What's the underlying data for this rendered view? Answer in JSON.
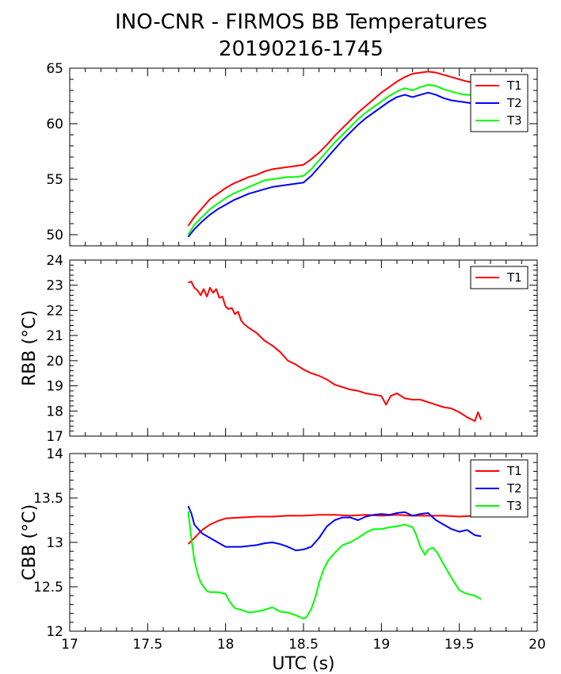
{
  "figure": {
    "title_line1": "INO-CNR - FIRMOS BB Temperatures",
    "title_line2": "20190216-1745"
  },
  "chart_data": [
    {
      "type": "line",
      "title": "",
      "xlabel": "",
      "ylabel": "",
      "xlim": [
        17,
        20
      ],
      "ylim": [
        49,
        65
      ],
      "yticks": [
        50,
        55,
        60,
        65
      ],
      "grid": false,
      "legend": "top-right",
      "series": [
        {
          "name": "T1",
          "color": "#ff0000",
          "x": [
            17.76,
            17.8,
            17.85,
            17.9,
            17.95,
            18.0,
            18.05,
            18.1,
            18.15,
            18.2,
            18.25,
            18.3,
            18.35,
            18.4,
            18.45,
            18.5,
            18.55,
            18.6,
            18.65,
            18.7,
            18.75,
            18.8,
            18.85,
            18.9,
            18.95,
            19.0,
            19.05,
            19.1,
            19.15,
            19.2,
            19.25,
            19.3,
            19.35,
            19.4,
            19.45,
            19.5,
            19.55,
            19.6,
            19.64
          ],
          "y": [
            50.8,
            51.6,
            52.4,
            53.2,
            53.7,
            54.2,
            54.6,
            54.9,
            55.2,
            55.4,
            55.7,
            55.9,
            56.0,
            56.1,
            56.2,
            56.3,
            56.8,
            57.4,
            58.1,
            58.9,
            59.6,
            60.3,
            61.0,
            61.6,
            62.2,
            62.8,
            63.3,
            63.8,
            64.2,
            64.5,
            64.6,
            64.7,
            64.6,
            64.4,
            64.2,
            64.0,
            63.8,
            63.7,
            63.6
          ]
        },
        {
          "name": "T2",
          "color": "#0000ff",
          "x": [
            17.76,
            17.8,
            17.85,
            17.9,
            17.95,
            18.0,
            18.05,
            18.1,
            18.15,
            18.2,
            18.25,
            18.3,
            18.35,
            18.4,
            18.45,
            18.5,
            18.55,
            18.6,
            18.65,
            18.7,
            18.75,
            18.8,
            18.85,
            18.9,
            18.95,
            19.0,
            19.05,
            19.1,
            19.15,
            19.2,
            19.25,
            19.3,
            19.35,
            19.4,
            19.45,
            19.5,
            19.55,
            19.6,
            19.64
          ],
          "y": [
            49.8,
            50.5,
            51.2,
            51.8,
            52.3,
            52.7,
            53.1,
            53.4,
            53.7,
            53.9,
            54.1,
            54.3,
            54.4,
            54.5,
            54.6,
            54.7,
            55.3,
            56.1,
            56.9,
            57.7,
            58.5,
            59.2,
            59.9,
            60.5,
            61.0,
            61.5,
            62.0,
            62.4,
            62.6,
            62.4,
            62.6,
            62.8,
            62.6,
            62.3,
            62.1,
            62.0,
            61.9,
            61.8,
            61.8
          ]
        },
        {
          "name": "T3",
          "color": "#00ff00",
          "x": [
            17.76,
            17.8,
            17.85,
            17.9,
            17.95,
            18.0,
            18.05,
            18.1,
            18.15,
            18.2,
            18.25,
            18.3,
            18.35,
            18.4,
            18.45,
            18.5,
            18.55,
            18.6,
            18.65,
            18.7,
            18.75,
            18.8,
            18.85,
            18.9,
            18.95,
            19.0,
            19.05,
            19.1,
            19.15,
            19.2,
            19.25,
            19.3,
            19.35,
            19.4,
            19.45,
            19.5,
            19.55,
            19.6,
            19.64
          ],
          "y": [
            50.0,
            50.9,
            51.6,
            52.3,
            52.8,
            53.3,
            53.7,
            54.0,
            54.3,
            54.6,
            54.9,
            55.0,
            55.1,
            55.2,
            55.2,
            55.3,
            55.9,
            56.7,
            57.5,
            58.3,
            59.0,
            59.7,
            60.4,
            61.0,
            61.5,
            62.0,
            62.5,
            62.9,
            63.2,
            63.0,
            63.3,
            63.5,
            63.4,
            63.1,
            62.9,
            62.7,
            62.6,
            62.6,
            62.5
          ]
        }
      ]
    },
    {
      "type": "line",
      "title": "",
      "xlabel": "",
      "ylabel": "RBB (°C)",
      "xlim": [
        17,
        20
      ],
      "ylim": [
        17,
        24
      ],
      "yticks": [
        17,
        18,
        19,
        20,
        21,
        22,
        23,
        24
      ],
      "grid": false,
      "legend": "top-right",
      "series": [
        {
          "name": "T1",
          "color": "#ff0000",
          "x": [
            17.76,
            17.78,
            17.8,
            17.82,
            17.84,
            17.86,
            17.88,
            17.9,
            17.92,
            17.94,
            17.96,
            17.98,
            18.0,
            18.02,
            18.04,
            18.06,
            18.08,
            18.1,
            18.12,
            18.15,
            18.2,
            18.25,
            18.3,
            18.35,
            18.4,
            18.45,
            18.5,
            18.55,
            18.6,
            18.65,
            18.7,
            18.75,
            18.8,
            18.85,
            18.9,
            18.95,
            19.0,
            19.03,
            19.06,
            19.1,
            19.15,
            19.2,
            19.25,
            19.3,
            19.35,
            19.4,
            19.45,
            19.5,
            19.55,
            19.6,
            19.62,
            19.64
          ],
          "y": [
            23.1,
            23.15,
            22.9,
            22.8,
            22.6,
            22.85,
            22.55,
            22.9,
            22.7,
            22.85,
            22.5,
            22.55,
            22.15,
            22.05,
            22.1,
            21.85,
            21.95,
            21.6,
            21.45,
            21.3,
            21.1,
            20.8,
            20.6,
            20.35,
            20.0,
            19.85,
            19.65,
            19.5,
            19.4,
            19.25,
            19.05,
            18.95,
            18.85,
            18.8,
            18.7,
            18.65,
            18.6,
            18.25,
            18.6,
            18.7,
            18.5,
            18.45,
            18.45,
            18.35,
            18.25,
            18.15,
            18.1,
            17.95,
            17.75,
            17.6,
            17.95,
            17.65
          ]
        }
      ]
    },
    {
      "type": "line",
      "title": "",
      "xlabel": "UTC (s)",
      "ylabel": "CBB (°C)",
      "xlim": [
        17,
        20
      ],
      "ylim": [
        12,
        14
      ],
      "yticks": [
        12,
        12.5,
        13,
        13.5,
        14
      ],
      "xticks": [
        17,
        17.5,
        18,
        18.5,
        19,
        19.5,
        20
      ],
      "grid": false,
      "legend": "top-right",
      "series": [
        {
          "name": "T1",
          "color": "#ff0000",
          "x": [
            17.76,
            17.8,
            17.85,
            17.9,
            17.95,
            18.0,
            18.1,
            18.2,
            18.3,
            18.4,
            18.5,
            18.6,
            18.7,
            18.8,
            18.9,
            19.0,
            19.1,
            19.2,
            19.3,
            19.4,
            19.5,
            19.6,
            19.64
          ],
          "y": [
            12.98,
            13.05,
            13.14,
            13.2,
            13.24,
            13.27,
            13.28,
            13.29,
            13.29,
            13.3,
            13.3,
            13.31,
            13.31,
            13.3,
            13.31,
            13.3,
            13.31,
            13.3,
            13.3,
            13.3,
            13.29,
            13.3,
            13.3
          ]
        },
        {
          "name": "T2",
          "color": "#0000ff",
          "x": [
            17.76,
            17.78,
            17.8,
            17.85,
            17.9,
            17.95,
            18.0,
            18.05,
            18.1,
            18.15,
            18.2,
            18.25,
            18.3,
            18.35,
            18.4,
            18.45,
            18.5,
            18.55,
            18.6,
            18.65,
            18.7,
            18.75,
            18.8,
            18.85,
            18.9,
            18.95,
            19.0,
            19.05,
            19.1,
            19.15,
            19.2,
            19.25,
            19.3,
            19.35,
            19.4,
            19.45,
            19.5,
            19.55,
            19.6,
            19.64
          ],
          "y": [
            13.41,
            13.33,
            13.2,
            13.1,
            13.05,
            13.0,
            12.95,
            12.95,
            12.95,
            12.96,
            12.97,
            12.99,
            13.0,
            12.98,
            12.95,
            12.91,
            12.92,
            12.95,
            13.05,
            13.18,
            13.25,
            13.28,
            13.28,
            13.25,
            13.29,
            13.31,
            13.32,
            13.31,
            13.33,
            13.34,
            13.3,
            13.32,
            13.33,
            13.25,
            13.2,
            13.15,
            13.12,
            13.14,
            13.08,
            13.07
          ]
        },
        {
          "name": "T3",
          "color": "#00ff00",
          "x": [
            17.76,
            17.78,
            17.8,
            17.82,
            17.84,
            17.86,
            17.88,
            17.9,
            17.95,
            18.0,
            18.02,
            18.04,
            18.06,
            18.1,
            18.15,
            18.2,
            18.25,
            18.3,
            18.35,
            18.4,
            18.45,
            18.5,
            18.52,
            18.55,
            18.58,
            18.6,
            18.63,
            18.66,
            18.7,
            18.75,
            18.8,
            18.85,
            18.9,
            18.95,
            19.0,
            19.05,
            19.1,
            19.15,
            19.2,
            19.22,
            19.25,
            19.28,
            19.3,
            19.33,
            19.36,
            19.4,
            19.45,
            19.5,
            19.55,
            19.6,
            19.64
          ],
          "y": [
            13.35,
            13.05,
            12.8,
            12.65,
            12.55,
            12.5,
            12.45,
            12.44,
            12.44,
            12.42,
            12.35,
            12.3,
            12.26,
            12.24,
            12.21,
            12.22,
            12.24,
            12.27,
            12.22,
            12.21,
            12.18,
            12.14,
            12.16,
            12.25,
            12.4,
            12.55,
            12.7,
            12.8,
            12.88,
            12.97,
            13.0,
            13.05,
            13.11,
            13.15,
            13.15,
            13.17,
            13.18,
            13.2,
            13.17,
            13.1,
            12.95,
            12.86,
            12.92,
            12.94,
            12.88,
            12.75,
            12.6,
            12.46,
            12.42,
            12.4,
            12.36
          ]
        }
      ]
    }
  ]
}
